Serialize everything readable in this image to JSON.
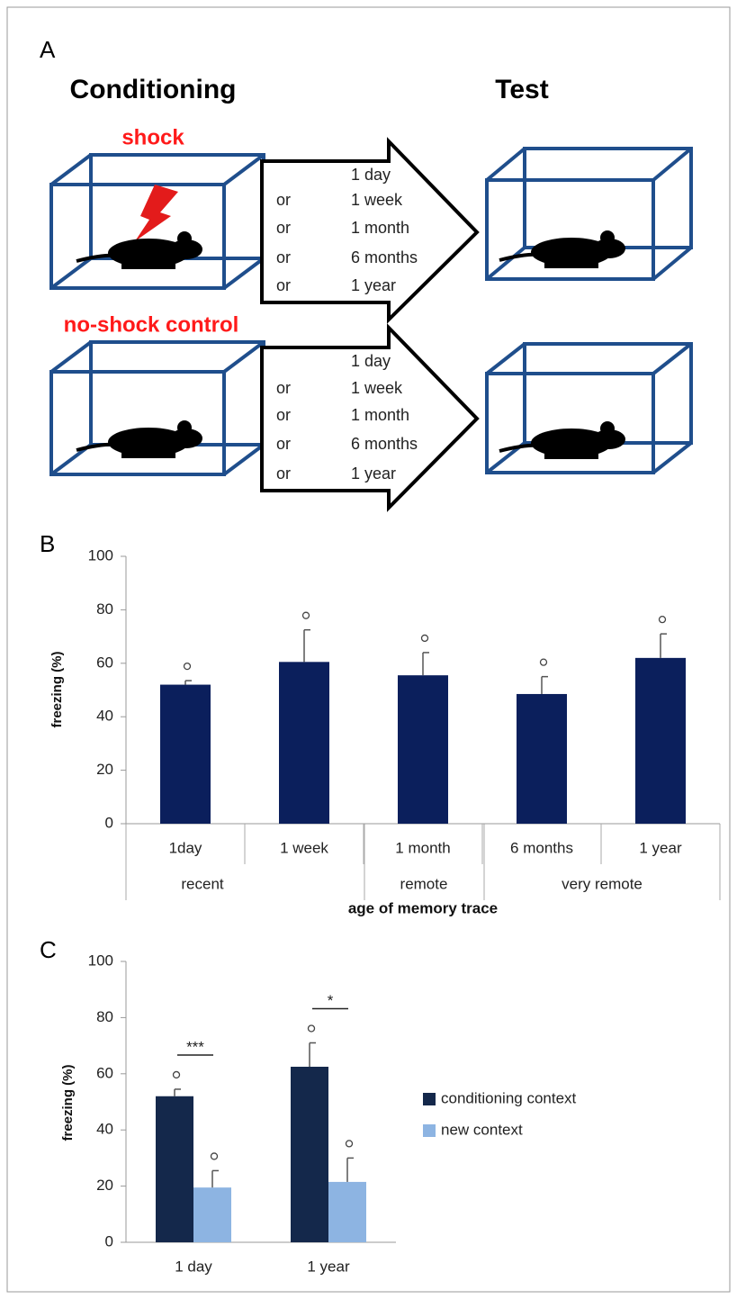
{
  "panel_labels": [
    "A",
    "B",
    "C"
  ],
  "diagram": {
    "left_title": "Conditioning",
    "right_title": "Test",
    "shock_label": "shock",
    "control_label": "no-shock control",
    "connector": "or",
    "intervals": [
      "1 day",
      "1 week",
      "1 month",
      "6 months",
      "1 year"
    ]
  },
  "chart_data": [
    {
      "type": "bar",
      "categories": [
        "1day",
        "1 week",
        "1 month",
        "6 months",
        "1 year"
      ],
      "group_labels": [
        "recent",
        "remote",
        "very remote"
      ],
      "values": [
        52,
        60.5,
        55.5,
        48.5,
        62
      ],
      "errors": [
        1.5,
        12,
        8.5,
        6.5,
        9
      ],
      "color": "#0b1f5c",
      "ylabel": "freezing (%)",
      "xlabel": "age of memory trace",
      "ylim": [
        0,
        100
      ],
      "yticks": [
        0,
        20,
        40,
        60,
        80,
        100
      ]
    },
    {
      "type": "bar",
      "categories": [
        "1 day",
        "1 year"
      ],
      "series": [
        {
          "name": "conditioning context",
          "color": "#14284b",
          "values": [
            52,
            62.5
          ],
          "errors": [
            2.5,
            8.5
          ]
        },
        {
          "name": "new context",
          "color": "#8db4e2",
          "values": [
            19.5,
            21.5
          ],
          "errors": [
            6,
            8.5
          ]
        }
      ],
      "significance": [
        "***",
        "*"
      ],
      "ylabel": "freezing (%)",
      "ylim": [
        0,
        100
      ],
      "yticks": [
        0,
        20,
        40,
        60,
        80,
        100
      ]
    }
  ]
}
